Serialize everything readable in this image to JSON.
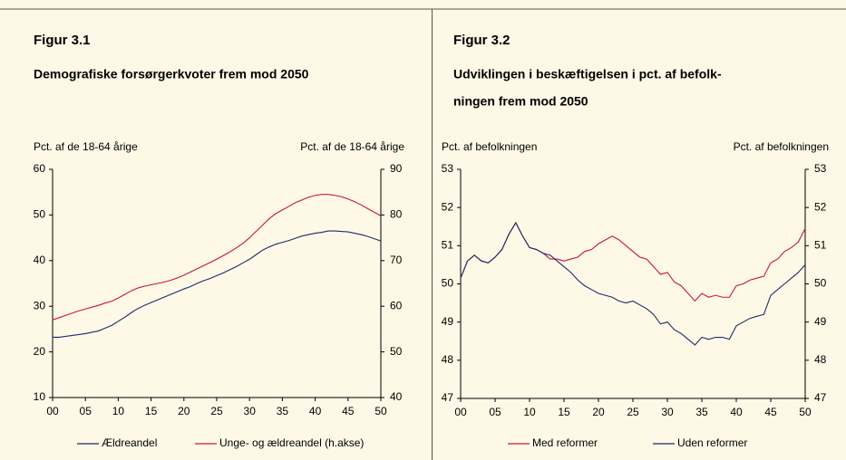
{
  "chart_data": [
    {
      "type": "line",
      "title": "Figur 3.1",
      "subtitle": "Demografiske forsørgerkvoter frem mod 2050",
      "ylabel": "Pct. af de 18-64 årige",
      "y2label": "Pct. af de 18-64 årige",
      "x": [
        0,
        1,
        2,
        3,
        4,
        5,
        6,
        7,
        8,
        9,
        10,
        11,
        12,
        13,
        14,
        15,
        16,
        17,
        18,
        19,
        20,
        21,
        22,
        23,
        24,
        25,
        26,
        27,
        28,
        29,
        30,
        31,
        32,
        33,
        34,
        35,
        36,
        37,
        38,
        39,
        40,
        41,
        42,
        43,
        44,
        45,
        46,
        47,
        48,
        49,
        50
      ],
      "xlim": [
        0,
        50
      ],
      "xticks": [
        {
          "value": 0,
          "label": "00"
        },
        {
          "value": 5,
          "label": "05"
        },
        10,
        15,
        20,
        25,
        30,
        35,
        40,
        45,
        50
      ],
      "ylim": [
        10,
        60
      ],
      "yticks": [
        10,
        20,
        30,
        40,
        50,
        60
      ],
      "y2lim": [
        40,
        90
      ],
      "y2ticks": [
        40,
        50,
        60,
        70,
        80,
        90
      ],
      "legend": "bottom",
      "series": [
        {
          "name": "Ældreandel",
          "color": "#1f2a6b",
          "values": [
            23.2,
            23.2,
            23.4,
            23.6,
            23.8,
            24,
            24.3,
            24.6,
            25.2,
            25.8,
            26.7,
            27.6,
            28.6,
            29.5,
            30.2,
            30.8,
            31.4,
            32,
            32.6,
            33.2,
            33.8,
            34.3,
            35,
            35.6,
            36.1,
            36.7,
            37.3,
            38,
            38.7,
            39.5,
            40.3,
            41.3,
            42.3,
            43,
            43.6,
            44,
            44.4,
            44.9,
            45.4,
            45.7,
            46,
            46.2,
            46.5,
            46.5,
            46.4,
            46.3,
            46,
            45.7,
            45.3,
            44.8,
            44.3
          ]
        },
        {
          "name": "Unge- og ældreandel (h.akse)",
          "color": "#c8143c",
          "axis": "y2",
          "values": [
            57,
            57.5,
            58,
            58.5,
            59,
            59.4,
            59.8,
            60.2,
            60.7,
            61.1,
            61.8,
            62.6,
            63.4,
            64,
            64.4,
            64.7,
            65,
            65.3,
            65.7,
            66.2,
            66.8,
            67.5,
            68.2,
            68.9,
            69.6,
            70.3,
            71.1,
            71.9,
            72.8,
            73.8,
            75,
            76.4,
            77.8,
            79.2,
            80.3,
            81.1,
            81.9,
            82.7,
            83.3,
            83.9,
            84.3,
            84.5,
            84.5,
            84.3,
            84,
            83.5,
            82.9,
            82.2,
            81.4,
            80.6,
            79.8
          ]
        }
      ]
    },
    {
      "type": "line",
      "title": "Figur 3.2",
      "subtitle": [
        "Udviklingen i beskæftigelsen i pct. af befolk-",
        "ningen frem mod 2050"
      ],
      "ylabel": "Pct. af befolkningen",
      "y2label": "Pct. af befolkningen",
      "x": [
        0,
        1,
        2,
        3,
        4,
        5,
        6,
        7,
        8,
        9,
        10,
        11,
        12,
        13,
        14,
        15,
        16,
        17,
        18,
        19,
        20,
        21,
        22,
        23,
        24,
        25,
        26,
        27,
        28,
        29,
        30,
        31,
        32,
        33,
        34,
        35,
        36,
        37,
        38,
        39,
        40,
        41,
        42,
        43,
        44,
        45,
        46,
        47,
        48,
        49,
        50
      ],
      "xlim": [
        0,
        50
      ],
      "xticks": [
        {
          "value": 0,
          "label": "00"
        },
        {
          "value": 5,
          "label": "05"
        },
        10,
        15,
        20,
        25,
        30,
        35,
        40,
        45,
        50
      ],
      "ylim": [
        47,
        53
      ],
      "yticks": [
        47,
        48,
        49,
        50,
        51,
        52,
        53
      ],
      "y2lim": [
        47,
        53
      ],
      "y2ticks": [
        47,
        48,
        49,
        50,
        51,
        52,
        53
      ],
      "legend": "bottom",
      "series": [
        {
          "name": "Med reformer",
          "color": "#c8143c",
          "values": [
            50.15,
            50.6,
            50.75,
            50.6,
            50.55,
            50.7,
            50.9,
            51.3,
            51.6,
            51.25,
            50.95,
            50.9,
            50.8,
            50.65,
            50.65,
            50.6,
            50.65,
            50.7,
            50.85,
            50.9,
            51.05,
            51.15,
            51.25,
            51.15,
            51,
            50.85,
            50.7,
            50.65,
            50.45,
            50.25,
            50.3,
            50.05,
            49.95,
            49.75,
            49.55,
            49.75,
            49.65,
            49.7,
            49.65,
            49.65,
            49.95,
            50,
            50.1,
            50.15,
            50.2,
            50.55,
            50.65,
            50.85,
            50.95,
            51.1,
            51.45
          ]
        },
        {
          "name": "Uden reformer",
          "color": "#1f2a6b",
          "values": [
            50.15,
            50.6,
            50.75,
            50.6,
            50.55,
            50.7,
            50.9,
            51.3,
            51.6,
            51.25,
            50.95,
            50.9,
            50.8,
            50.75,
            50.6,
            50.45,
            50.3,
            50.1,
            49.95,
            49.85,
            49.75,
            49.7,
            49.65,
            49.55,
            49.5,
            49.55,
            49.45,
            49.35,
            49.2,
            48.95,
            49,
            48.8,
            48.7,
            48.55,
            48.4,
            48.6,
            48.55,
            48.6,
            48.6,
            48.55,
            48.9,
            49,
            49.1,
            49.15,
            49.2,
            49.7,
            49.85,
            50,
            50.15,
            50.3,
            50.5
          ]
        }
      ]
    }
  ]
}
